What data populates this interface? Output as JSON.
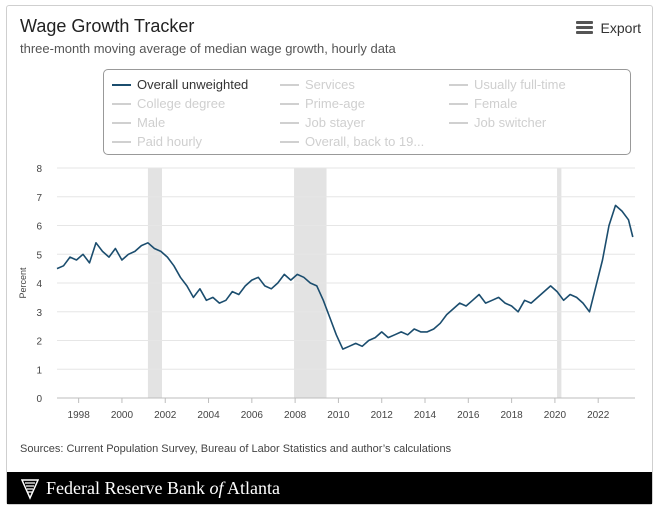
{
  "header": {
    "title": "Wage Growth Tracker",
    "subtitle": "three-month moving average of median wage growth, hourly data",
    "export_label": "Export"
  },
  "legend": [
    {
      "label": "Overall unweighted",
      "active": true
    },
    {
      "label": "Services",
      "active": false
    },
    {
      "label": "Usually full-time",
      "active": false
    },
    {
      "label": "College degree",
      "active": false
    },
    {
      "label": "Prime-age",
      "active": false
    },
    {
      "label": "Female",
      "active": false
    },
    {
      "label": "Male",
      "active": false
    },
    {
      "label": "Job stayer",
      "active": false
    },
    {
      "label": "Job switcher",
      "active": false
    },
    {
      "label": "Paid hourly",
      "active": false
    },
    {
      "label": "Overall, back to 19...",
      "active": false
    }
  ],
  "sources": "Sources: Current Population Survey, Bureau of Labor Statistics and author’s calculations",
  "footer": {
    "org_before": "Federal Reserve Bank",
    "org_italic": "of",
    "org_after": "Atlanta"
  },
  "colors": {
    "series": "#1b4d6e",
    "recession": "#e3e3e3",
    "gridline": "#e6e6e6",
    "legend_inactive": "#cfcfcf"
  },
  "chart_data": {
    "type": "line",
    "title": "Wage Growth Tracker",
    "subtitle": "three-month moving average of median wage growth, hourly data",
    "xlabel": "",
    "ylabel": "Percent",
    "xlim": [
      1997,
      2023.7
    ],
    "ylim": [
      0,
      8
    ],
    "x_ticks": [
      1998,
      2000,
      2002,
      2004,
      2006,
      2008,
      2010,
      2012,
      2014,
      2016,
      2018,
      2020,
      2022
    ],
    "y_ticks": [
      0,
      1,
      2,
      3,
      4,
      5,
      6,
      7,
      8
    ],
    "grid": true,
    "recession_bands": [
      [
        2001.2,
        2001.85
      ],
      [
        2007.95,
        2009.45
      ],
      [
        2020.1,
        2020.3
      ]
    ],
    "series": [
      {
        "name": "Overall unweighted",
        "x": [
          1997.0,
          1997.3,
          1997.6,
          1997.9,
          1998.2,
          1998.5,
          1998.8,
          1999.1,
          1999.4,
          1999.7,
          2000.0,
          2000.3,
          2000.6,
          2000.9,
          2001.2,
          2001.5,
          2001.8,
          2002.1,
          2002.4,
          2002.7,
          2003.0,
          2003.3,
          2003.6,
          2003.9,
          2004.2,
          2004.5,
          2004.8,
          2005.1,
          2005.4,
          2005.7,
          2006.0,
          2006.3,
          2006.6,
          2006.9,
          2007.2,
          2007.5,
          2007.8,
          2008.1,
          2008.4,
          2008.7,
          2009.0,
          2009.3,
          2009.6,
          2009.9,
          2010.2,
          2010.5,
          2010.8,
          2011.1,
          2011.4,
          2011.7,
          2012.0,
          2012.3,
          2012.6,
          2012.9,
          2013.2,
          2013.5,
          2013.8,
          2014.1,
          2014.4,
          2014.7,
          2015.0,
          2015.3,
          2015.6,
          2015.9,
          2016.2,
          2016.5,
          2016.8,
          2017.1,
          2017.4,
          2017.7,
          2018.0,
          2018.3,
          2018.6,
          2018.9,
          2019.2,
          2019.5,
          2019.8,
          2020.1,
          2020.4,
          2020.7,
          2021.0,
          2021.3,
          2021.6,
          2021.9,
          2022.2,
          2022.5,
          2022.8,
          2023.1,
          2023.4,
          2023.6
        ],
        "values": [
          4.5,
          4.6,
          4.9,
          4.8,
          5.0,
          4.7,
          5.4,
          5.1,
          4.9,
          5.2,
          4.8,
          5.0,
          5.1,
          5.3,
          5.4,
          5.2,
          5.1,
          4.9,
          4.6,
          4.2,
          3.9,
          3.5,
          3.8,
          3.4,
          3.5,
          3.3,
          3.4,
          3.7,
          3.6,
          3.9,
          4.1,
          4.2,
          3.9,
          3.8,
          4.0,
          4.3,
          4.1,
          4.3,
          4.2,
          4.0,
          3.9,
          3.4,
          2.8,
          2.2,
          1.7,
          1.8,
          1.9,
          1.8,
          2.0,
          2.1,
          2.3,
          2.1,
          2.2,
          2.3,
          2.2,
          2.4,
          2.3,
          2.3,
          2.4,
          2.6,
          2.9,
          3.1,
          3.3,
          3.2,
          3.4,
          3.6,
          3.3,
          3.4,
          3.5,
          3.3,
          3.2,
          3.0,
          3.4,
          3.3,
          3.5,
          3.7,
          3.9,
          3.7,
          3.4,
          3.6,
          3.5,
          3.3,
          3.0,
          3.9,
          4.8,
          6.0,
          6.7,
          6.5,
          6.2,
          5.6
        ]
      }
    ]
  }
}
